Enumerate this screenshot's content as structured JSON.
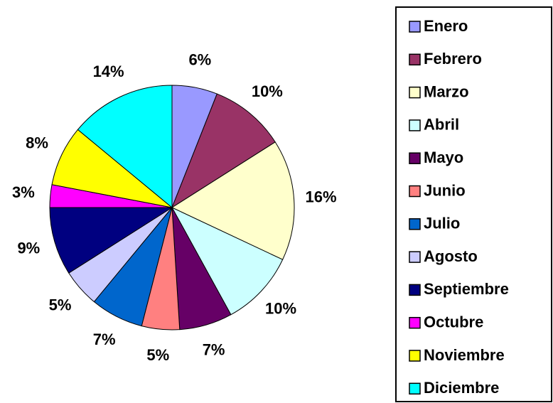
{
  "chart_data": {
    "type": "pie",
    "categories": [
      "Enero",
      "Febrero",
      "Marzo",
      "Abril",
      "Mayo",
      "Junio",
      "Julio",
      "Agosto",
      "Septiembre",
      "Octubre",
      "Noviembre",
      "Diciembre"
    ],
    "values": [
      6,
      10,
      16,
      10,
      7,
      5,
      7,
      5,
      9,
      3,
      8,
      14
    ],
    "value_labels": [
      "6%",
      "10%",
      "16%",
      "10%",
      "7%",
      "5%",
      "7%",
      "5%",
      "9%",
      "3%",
      "8%",
      "14%"
    ],
    "colors": [
      "#9999ff",
      "#993366",
      "#ffffcc",
      "#ccffff",
      "#660066",
      "#ff8080",
      "#0066cc",
      "#ccccff",
      "#000080",
      "#ff00ff",
      "#ffff00",
      "#00ffff"
    ],
    "legend": "right"
  }
}
